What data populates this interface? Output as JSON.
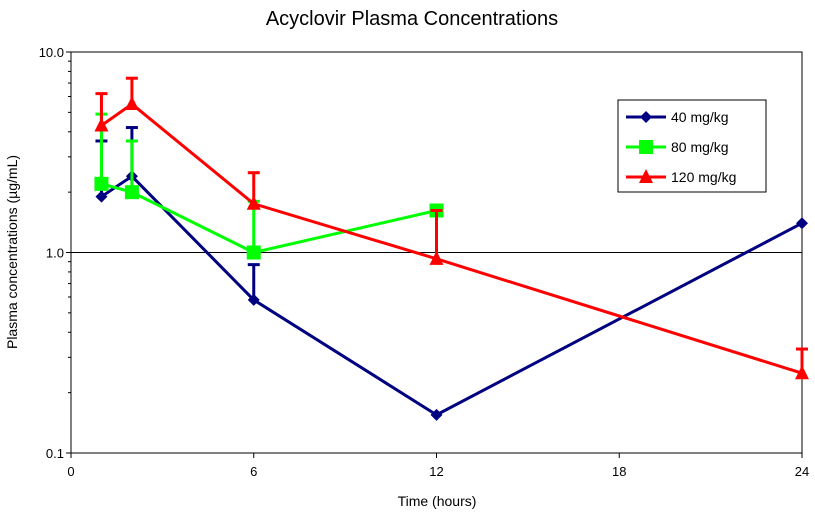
{
  "chart_data": {
    "type": "line",
    "title": "Acyclovir Plasma Concentrations",
    "xlabel": "Time (hours)",
    "ylabel": "Plasma concentrations (µg/mL)",
    "xlim": [
      0,
      24
    ],
    "ylim": [
      0.1,
      10
    ],
    "yscale": "log",
    "x_ticks": [
      0,
      6,
      12,
      18,
      24
    ],
    "x_tick_labels": [
      "0",
      "6",
      "12",
      "18",
      "24"
    ],
    "y_ticks": [
      0.1,
      1,
      10
    ],
    "y_tick_labels": [
      "0.1",
      "1.0",
      "10.0"
    ],
    "grid": "horizontal major line at 1.0",
    "legend_position": "right",
    "series": [
      {
        "name": "40 mg/kg",
        "color": "#000080",
        "marker": "diamond",
        "x": [
          1,
          2,
          6,
          12,
          24
        ],
        "y": [
          1.9,
          2.4,
          0.58,
          0.155,
          1.4
        ],
        "error_upper": [
          3.6,
          4.2,
          0.87,
          null,
          null
        ]
      },
      {
        "name": "80 mg/kg",
        "color": "#00ff00",
        "marker": "square",
        "x": [
          1,
          2,
          6,
          12
        ],
        "y": [
          2.2,
          2.0,
          1.0,
          1.62
        ],
        "error_upper": [
          4.9,
          3.6,
          1.8,
          null
        ]
      },
      {
        "name": "120 mg/kg",
        "color": "#ff0000",
        "marker": "triangle",
        "x": [
          1,
          2,
          6,
          12,
          24
        ],
        "y": [
          4.3,
          5.5,
          1.75,
          0.93,
          0.25
        ],
        "error_upper": [
          6.2,
          7.4,
          2.5,
          1.62,
          0.33
        ]
      }
    ]
  }
}
